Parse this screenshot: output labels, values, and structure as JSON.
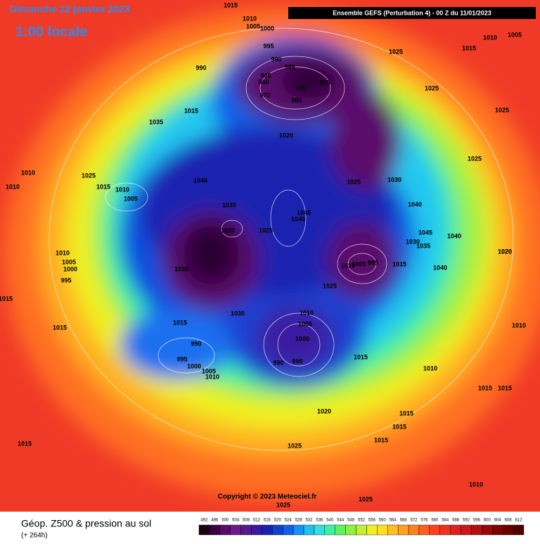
{
  "header": {
    "date": "Dimanche 22 janvier 2023",
    "time": "1:00 locale",
    "run": "Ensemble GEFS  (Perturbation 4)  -  00 Z du 11/01/2023"
  },
  "pressure_labels": [
    1015,
    1010,
    1005,
    1000,
    995,
    990,
    985,
    965,
    960,
    975,
    970,
    975,
    980,
    990,
    1015,
    1035,
    1020,
    1025,
    1015,
    1010,
    1005,
    1025,
    1025,
    1025,
    1010,
    1010,
    1025,
    1015,
    1010,
    1005,
    1040,
    1025,
    1030,
    1030,
    1020,
    1045,
    1040,
    1025,
    1040,
    1045,
    1030,
    1035,
    1040,
    1020,
    1010,
    1005,
    1000,
    995,
    1030,
    1010,
    1005,
    995,
    1015,
    1040,
    1020,
    1025,
    1015,
    1030,
    1010,
    1015,
    1005,
    1000,
    1015,
    1010,
    990,
    995,
    1000,
    1005,
    1010,
    990,
    995,
    1015,
    1010,
    1015,
    1015,
    1020,
    1015,
    1015,
    1015,
    1025,
    1015,
    1010,
    1025,
    1025
  ],
  "copyright": "Copyright © 2023 Meteociel.fr",
  "footer": {
    "title": "Géop. Z500 & pression au sol",
    "lead": "(+ 264h)"
  },
  "colorbar": {
    "values": [
      492,
      496,
      500,
      504,
      508,
      512,
      516,
      520,
      524,
      528,
      532,
      536,
      540,
      544,
      548,
      552,
      556,
      560,
      564,
      568,
      572,
      576,
      580,
      584,
      588,
      592,
      596,
      600,
      604,
      608,
      612
    ],
    "colors": [
      "#1a0010",
      "#3a0040",
      "#5a0a6a",
      "#6a1a8a",
      "#551a90",
      "#3a1aa0",
      "#1a20b0",
      "#1040d0",
      "#1060e8",
      "#1a90f0",
      "#20c0f0",
      "#30e0e0",
      "#40f0a0",
      "#60f060",
      "#90f040",
      "#c0f030",
      "#f0f020",
      "#ffe020",
      "#ffc020",
      "#ffa020",
      "#ff8020",
      "#ff6020",
      "#ff4020",
      "#f03020",
      "#e02020",
      "#c81818",
      "#b01010",
      "#980808",
      "#800000",
      "#680000",
      "#500000"
    ]
  }
}
